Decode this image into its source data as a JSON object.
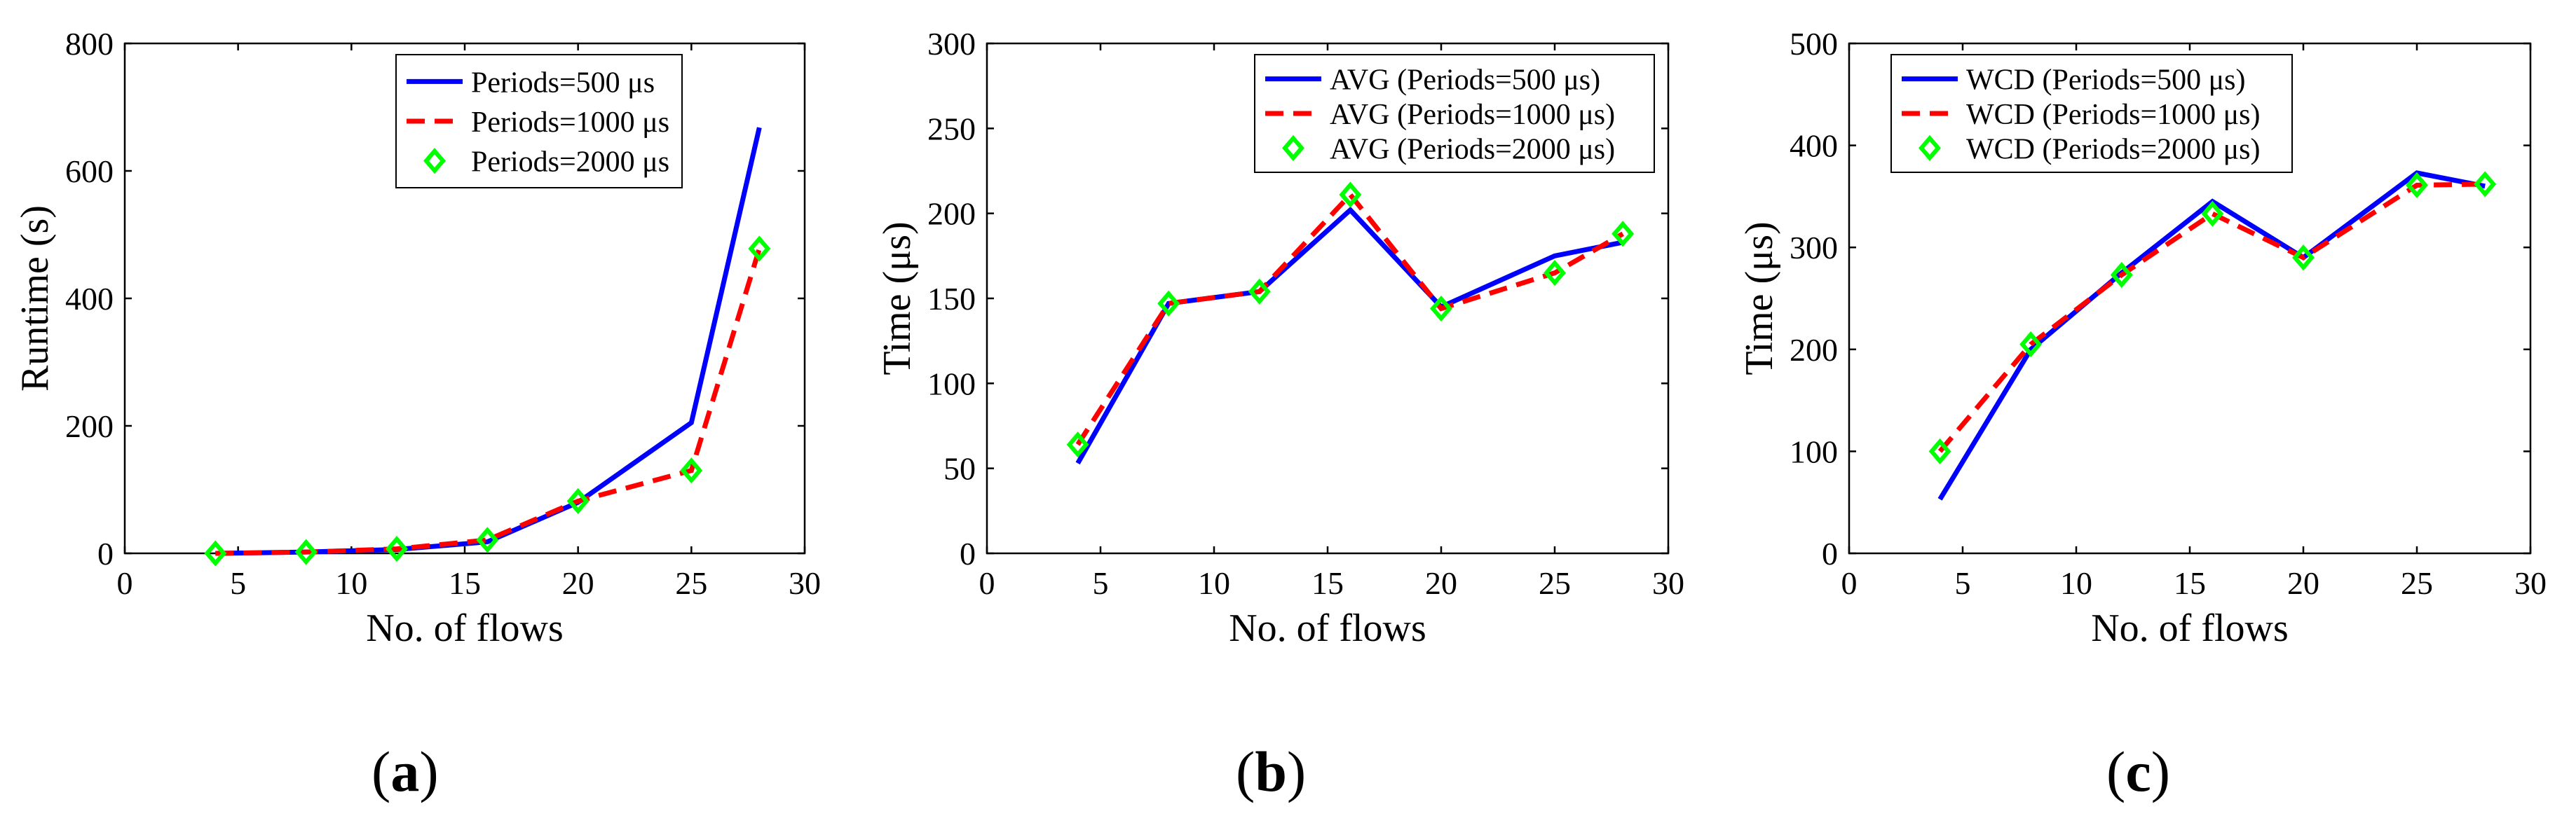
{
  "colors": {
    "series_500": "#0000ff",
    "series_1000": "#ff0000",
    "series_2000": "#00ff00",
    "axis": "#000000"
  },
  "chart_data": [
    {
      "id": "a",
      "type": "line",
      "caption": "a",
      "xlabel": "No. of flows",
      "ylabel": "Runtime (s)",
      "xlim": [
        0,
        30
      ],
      "ylim": [
        0,
        800
      ],
      "xticks": [
        0,
        5,
        10,
        15,
        20,
        25,
        30
      ],
      "yticks": [
        0,
        200,
        400,
        600,
        800
      ],
      "legend_position": "top-right",
      "x": [
        4,
        8,
        12,
        16,
        20,
        25,
        28
      ],
      "series": [
        {
          "name": "Periods=500 μs",
          "style": "solid",
          "values": [
            0,
            2,
            6,
            18,
            80,
            205,
            668
          ]
        },
        {
          "name": "Periods=1000 μs",
          "style": "dashed",
          "values": [
            0,
            2,
            7,
            21,
            82,
            130,
            478
          ]
        },
        {
          "name": "Periods=2000 μs",
          "style": "marker",
          "values": [
            0,
            2,
            7,
            21,
            82,
            130,
            478
          ]
        }
      ]
    },
    {
      "id": "b",
      "type": "line",
      "caption": "b",
      "xlabel": "No. of flows",
      "ylabel": "Time (μs)",
      "xlim": [
        0,
        30
      ],
      "ylim": [
        0,
        300
      ],
      "xticks": [
        0,
        5,
        10,
        15,
        20,
        25,
        30
      ],
      "yticks": [
        0,
        50,
        100,
        150,
        200,
        250,
        300
      ],
      "legend_position": "top-right",
      "x": [
        4,
        8,
        12,
        16,
        20,
        25,
        28
      ],
      "series": [
        {
          "name": "AVG (Periods=500 μs)",
          "style": "solid",
          "values": [
            53,
            147,
            154,
            202,
            145,
            175,
            183
          ]
        },
        {
          "name": "AVG (Periods=1000 μs)",
          "style": "dashed",
          "values": [
            64,
            147,
            154,
            211,
            144,
            165,
            188
          ]
        },
        {
          "name": "AVG (Periods=2000 μs)",
          "style": "marker",
          "values": [
            64,
            147,
            154,
            211,
            144,
            165,
            188
          ]
        }
      ]
    },
    {
      "id": "c",
      "type": "line",
      "caption": "c",
      "xlabel": "No. of flows",
      "ylabel": "Time (μs)",
      "xlim": [
        0,
        30
      ],
      "ylim": [
        0,
        500
      ],
      "xticks": [
        0,
        5,
        10,
        15,
        20,
        25,
        30
      ],
      "yticks": [
        0,
        100,
        200,
        300,
        400,
        500
      ],
      "legend_position": "top-left",
      "x": [
        4,
        8,
        12,
        16,
        20,
        25,
        28
      ],
      "series": [
        {
          "name": "WCD (Periods=500 μs)",
          "style": "solid",
          "values": [
            53,
            200,
            275,
            345,
            290,
            373,
            360
          ]
        },
        {
          "name": "WCD (Periods=1000 μs)",
          "style": "dashed",
          "values": [
            100,
            205,
            273,
            333,
            290,
            361,
            362
          ]
        },
        {
          "name": "WCD (Periods=2000 μs)",
          "style": "marker",
          "values": [
            100,
            205,
            273,
            333,
            290,
            361,
            362
          ]
        }
      ]
    }
  ]
}
